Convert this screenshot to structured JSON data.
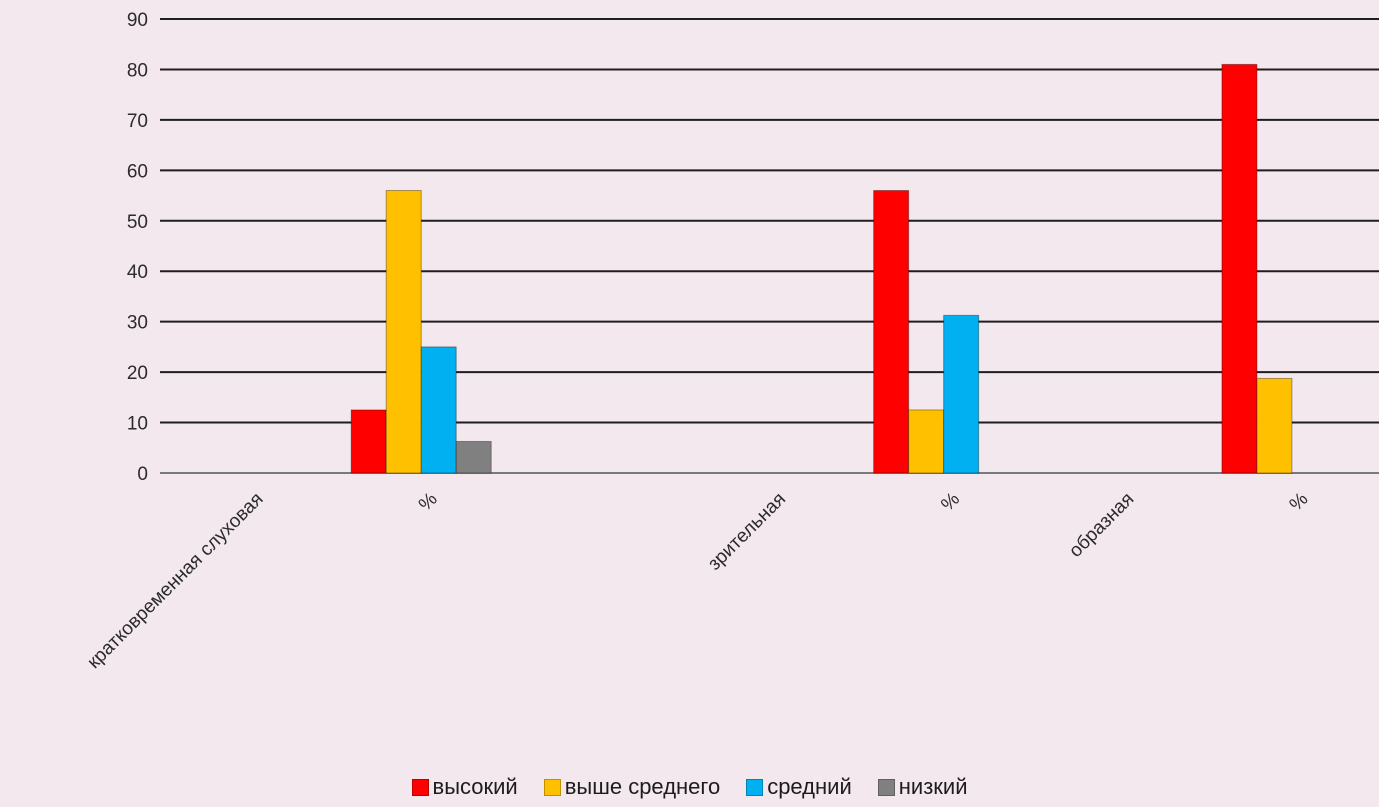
{
  "chart_data": {
    "type": "bar",
    "categories": [
      "кратковременная слуховая",
      "%",
      "",
      "зрительная",
      "%",
      "образная",
      "%"
    ],
    "series": [
      {
        "name": "высокий",
        "color": "#ff0000",
        "values": [
          null,
          12.5,
          null,
          null,
          56,
          null,
          81
        ]
      },
      {
        "name": "выше среднего",
        "color": "#ffc000",
        "values": [
          null,
          56,
          null,
          null,
          12.5,
          null,
          18.75
        ]
      },
      {
        "name": "средний",
        "color": "#00b0f0",
        "values": [
          null,
          25,
          null,
          null,
          31.25,
          null,
          null
        ]
      },
      {
        "name": "низкий",
        "color": "#808080",
        "values": [
          null,
          6.25,
          null,
          null,
          null,
          null,
          null
        ]
      }
    ],
    "title": "",
    "xlabel": "",
    "ylabel": "",
    "ylim": [
      0,
      90
    ],
    "yticks": [
      "0",
      "10",
      "20",
      "30",
      "40",
      "50",
      "60",
      "70",
      "80",
      "90"
    ],
    "grid": true,
    "legend_position": "bottom"
  }
}
